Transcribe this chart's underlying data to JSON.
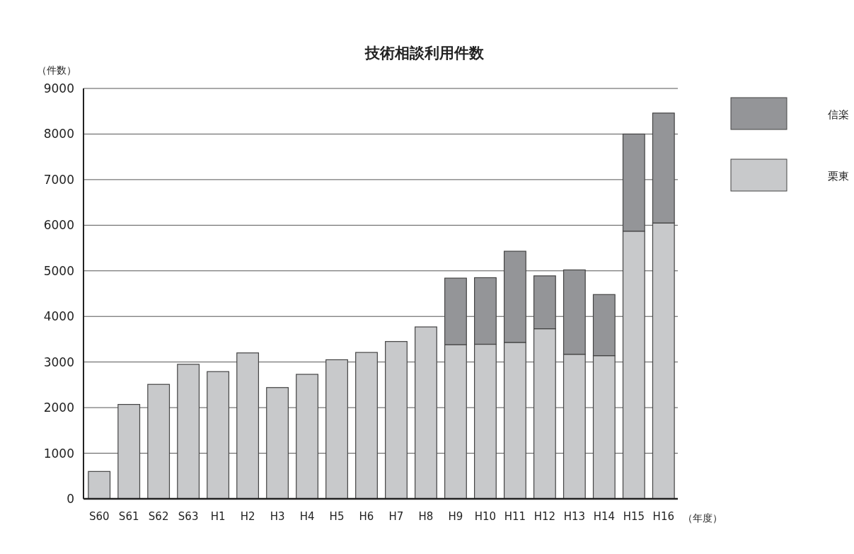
{
  "chart_data": {
    "type": "bar",
    "title": "技術相談利用件数",
    "ylabel": "（件数）",
    "xlabel": "（年度）",
    "stacked": true,
    "categories": [
      "S60",
      "S61",
      "S62",
      "S63",
      "H1",
      "H2",
      "H3",
      "H4",
      "H5",
      "H6",
      "H7",
      "H8",
      "H9",
      "H10",
      "H11",
      "H12",
      "H13",
      "H14",
      "H15",
      "H16"
    ],
    "series": [
      {
        "name": "栗東",
        "color": "#c8c9cb",
        "values": [
          600,
          2070,
          2510,
          2950,
          2790,
          3200,
          2440,
          2730,
          3050,
          3210,
          3450,
          3770,
          3380,
          3390,
          3430,
          3730,
          3170,
          3140,
          5870,
          6050
        ]
      },
      {
        "name": "信楽",
        "color": "#949598",
        "values": [
          null,
          null,
          null,
          null,
          null,
          null,
          null,
          null,
          null,
          null,
          null,
          null,
          1460,
          1460,
          2000,
          1160,
          1850,
          1340,
          2130,
          2410
        ]
      }
    ],
    "ylim": [
      0,
      9000
    ],
    "yticks": [
      0,
      1000,
      2000,
      3000,
      4000,
      5000,
      6000,
      7000,
      8000,
      9000
    ],
    "grid": "y",
    "legend": "top right"
  }
}
